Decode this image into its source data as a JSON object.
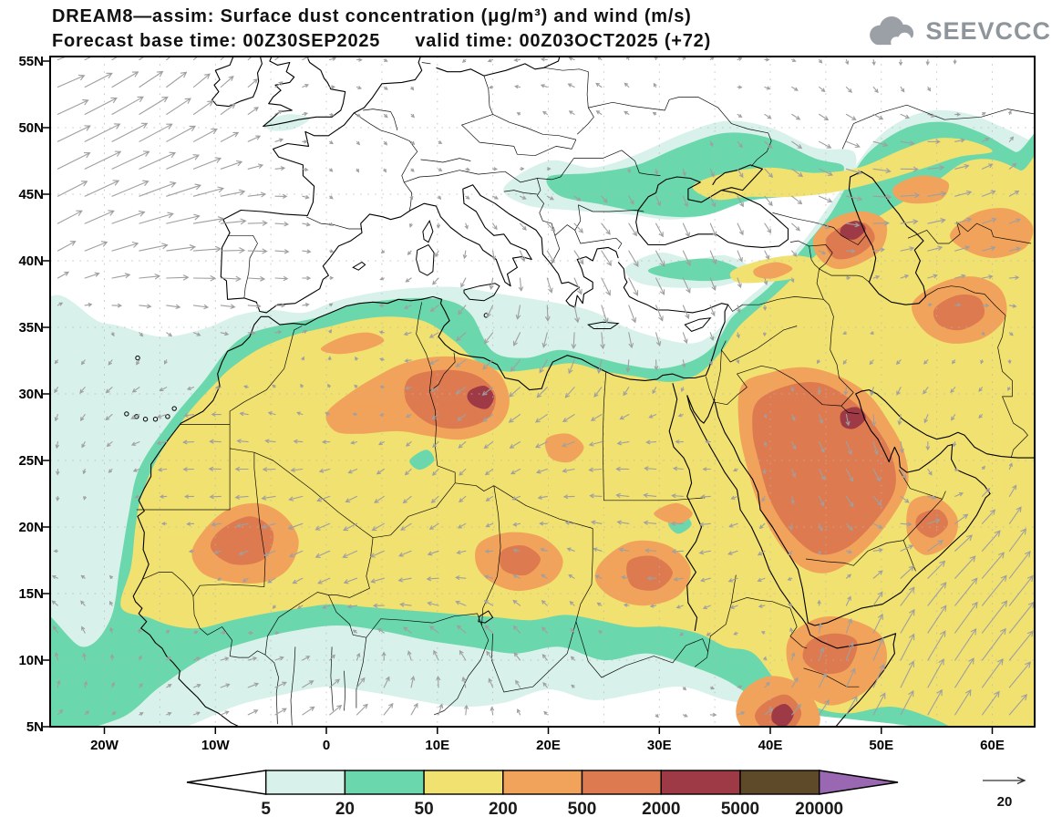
{
  "title": {
    "line1": "DREAM8—assim: Surface dust concentration (μg/m³) and wind (m/s)",
    "line2": "Forecast base time: 00Z30SEP2025      valid time: 00Z03OCT2025 (+72)"
  },
  "logo": {
    "text": "SEEVCCC"
  },
  "axes": {
    "y_labels": [
      "55N",
      "50N",
      "45N",
      "40N",
      "35N",
      "30N",
      "25N",
      "20N",
      "15N",
      "10N",
      "5N"
    ],
    "x_labels": [
      "20W",
      "10W",
      "0",
      "10E",
      "20E",
      "30E",
      "40E",
      "50E",
      "60E"
    ]
  },
  "colorbar": {
    "levels": [
      "5",
      "20",
      "50",
      "200",
      "500",
      "2000",
      "5000",
      "20000"
    ],
    "segment_colors": [
      "#ffffff",
      "#d8f1ea",
      "#6bd7ac",
      "#f0e170",
      "#f2a35b",
      "#dd7a50",
      "#9e3a46",
      "#5e4928",
      "#9a68b2"
    ]
  },
  "wind_reference": {
    "value": "20"
  },
  "map_colors": {
    "coast": "#000000",
    "border": "#000000",
    "arrow": "#9f9f9f",
    "grid": "#b5b5b5",
    "background": "#ffffff"
  }
}
